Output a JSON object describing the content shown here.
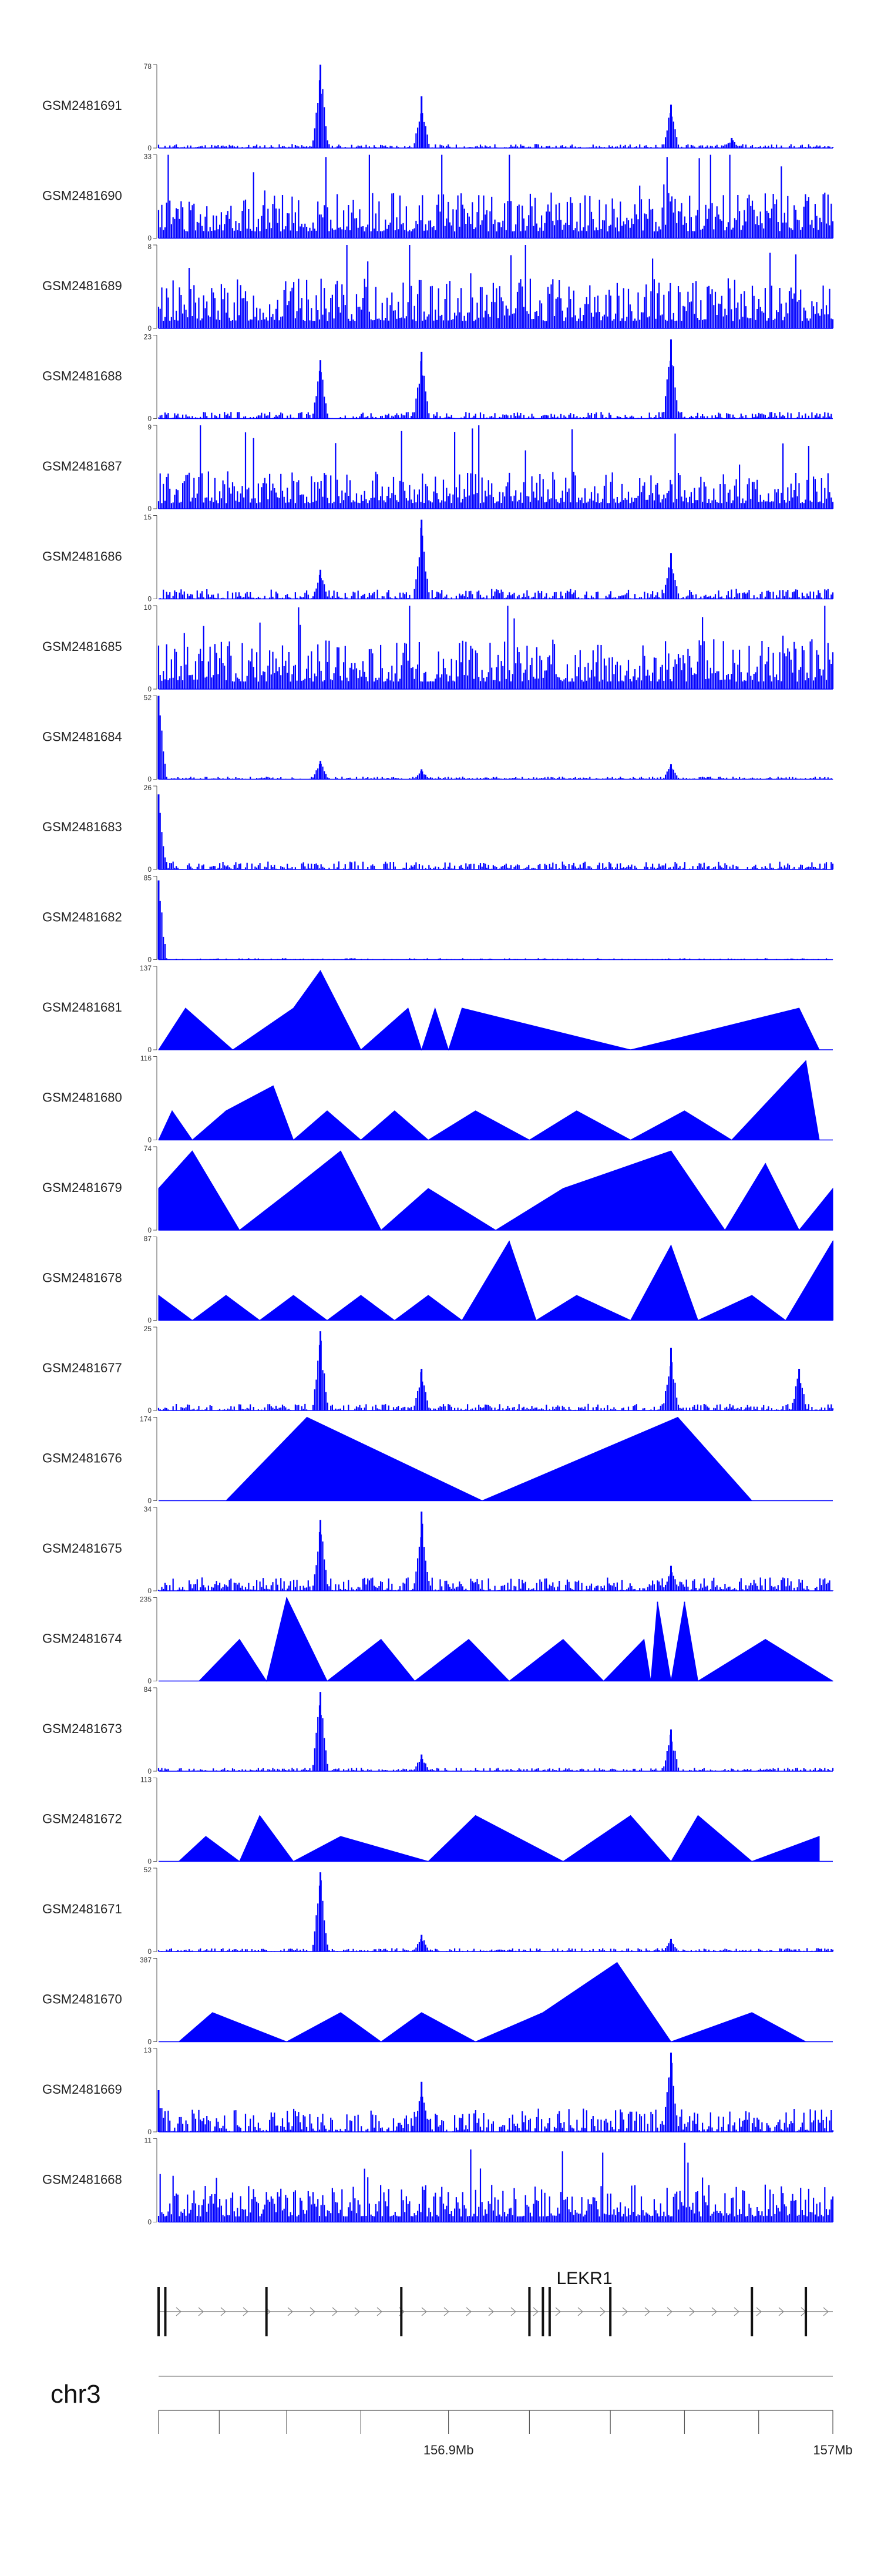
{
  "chart_data": {
    "type": "area",
    "color": "#0000ff",
    "tracks": [
      {
        "name": "GSM2481691",
        "ymax": "78",
        "ymin": "0",
        "style": "peaks",
        "peaks": [
          [
            0.24,
            1.0
          ],
          [
            0.39,
            0.62
          ],
          [
            0.76,
            0.52
          ],
          [
            0.85,
            0.12
          ]
        ],
        "noise": 0.06,
        "seed": 11
      },
      {
        "name": "GSM2481690",
        "ymax": "33",
        "ymin": "0",
        "style": "dense",
        "noise": 0.55,
        "seed": 12
      },
      {
        "name": "GSM2481689",
        "ymax": "8",
        "ymin": "0",
        "style": "dense",
        "noise": 0.6,
        "seed": 13
      },
      {
        "name": "GSM2481688",
        "ymax": "23",
        "ymin": "0",
        "style": "peaks",
        "peaks": [
          [
            0.24,
            0.7
          ],
          [
            0.39,
            0.8
          ],
          [
            0.76,
            0.95
          ]
        ],
        "noise": 0.1,
        "seed": 14
      },
      {
        "name": "GSM2481687",
        "ymax": "9",
        "ymin": "0",
        "style": "dense",
        "noise": 0.45,
        "seed": 15
      },
      {
        "name": "GSM2481686",
        "ymax": "15",
        "ymin": "0",
        "style": "peaks",
        "peaks": [
          [
            0.24,
            0.35
          ],
          [
            0.39,
            0.95
          ],
          [
            0.76,
            0.55
          ]
        ],
        "noise": 0.15,
        "seed": 16
      },
      {
        "name": "GSM2481685",
        "ymax": "10",
        "ymin": "0",
        "style": "dense",
        "noise": 0.6,
        "seed": 17
      },
      {
        "name": "GSM2481684",
        "ymax": "52",
        "ymin": "0",
        "style": "peaks",
        "peaks": [
          [
            0.0,
            1.0
          ],
          [
            0.24,
            0.22
          ],
          [
            0.39,
            0.12
          ],
          [
            0.76,
            0.18
          ]
        ],
        "noise": 0.04,
        "seed": 18
      },
      {
        "name": "GSM2481683",
        "ymax": "26",
        "ymin": "0",
        "style": "peaks",
        "peaks": [
          [
            0.0,
            0.9
          ]
        ],
        "noise": 0.12,
        "seed": 19
      },
      {
        "name": "GSM2481682",
        "ymax": "85",
        "ymin": "0",
        "style": "peaks",
        "peaks": [
          [
            0.0,
            0.95
          ]
        ],
        "noise": 0.02,
        "seed": 20
      },
      {
        "name": "GSM2481681",
        "ymax": "137",
        "ymin": "0",
        "style": "tri",
        "peaks": [
          [
            0.0,
            0.0
          ],
          [
            0.04,
            0.5
          ],
          [
            0.11,
            0.0
          ],
          [
            0.2,
            0.5
          ],
          [
            0.24,
            0.95
          ],
          [
            0.3,
            0.0
          ],
          [
            0.37,
            0.5
          ],
          [
            0.39,
            0.0
          ],
          [
            0.41,
            0.5
          ],
          [
            0.43,
            0.0
          ],
          [
            0.45,
            0.5
          ],
          [
            0.7,
            0.0
          ],
          [
            0.95,
            0.5
          ],
          [
            0.98,
            0.0
          ]
        ],
        "noise": 0.0,
        "seed": 21
      },
      {
        "name": "GSM2481680",
        "ymax": "116",
        "ymin": "0",
        "style": "tri",
        "peaks": [
          [
            0.0,
            0.0
          ],
          [
            0.02,
            0.35
          ],
          [
            0.05,
            0.0
          ],
          [
            0.1,
            0.35
          ],
          [
            0.17,
            0.65
          ],
          [
            0.2,
            0.0
          ],
          [
            0.25,
            0.35
          ],
          [
            0.3,
            0.0
          ],
          [
            0.35,
            0.35
          ],
          [
            0.4,
            0.0
          ],
          [
            0.47,
            0.35
          ],
          [
            0.55,
            0.0
          ],
          [
            0.62,
            0.35
          ],
          [
            0.7,
            0.0
          ],
          [
            0.78,
            0.35
          ],
          [
            0.85,
            0.0
          ],
          [
            0.96,
            0.95
          ],
          [
            0.98,
            0.0
          ]
        ],
        "noise": 0.0,
        "seed": 22
      },
      {
        "name": "GSM2481679",
        "ymax": "74",
        "ymin": "0",
        "style": "tri",
        "peaks": [
          [
            0.0,
            0.5
          ],
          [
            0.05,
            0.95
          ],
          [
            0.12,
            0.0
          ],
          [
            0.2,
            0.5
          ],
          [
            0.27,
            0.95
          ],
          [
            0.33,
            0.0
          ],
          [
            0.4,
            0.5
          ],
          [
            0.5,
            0.0
          ],
          [
            0.6,
            0.5
          ],
          [
            0.76,
            0.95
          ],
          [
            0.84,
            0.0
          ],
          [
            0.9,
            0.8
          ],
          [
            0.95,
            0.0
          ],
          [
            1.0,
            0.5
          ]
        ],
        "noise": 0.0,
        "seed": 23
      },
      {
        "name": "GSM2481678",
        "ymax": "87",
        "ymin": "0",
        "style": "tri",
        "peaks": [
          [
            0.0,
            0.3
          ],
          [
            0.05,
            0.0
          ],
          [
            0.1,
            0.3
          ],
          [
            0.15,
            0.0
          ],
          [
            0.2,
            0.3
          ],
          [
            0.25,
            0.0
          ],
          [
            0.3,
            0.3
          ],
          [
            0.35,
            0.0
          ],
          [
            0.4,
            0.3
          ],
          [
            0.45,
            0.0
          ],
          [
            0.52,
            0.95
          ],
          [
            0.56,
            0.0
          ],
          [
            0.62,
            0.3
          ],
          [
            0.7,
            0.0
          ],
          [
            0.76,
            0.9
          ],
          [
            0.8,
            0.0
          ],
          [
            0.88,
            0.3
          ],
          [
            0.93,
            0.0
          ],
          [
            1.0,
            0.95
          ]
        ],
        "noise": 0.0,
        "seed": 24
      },
      {
        "name": "GSM2481677",
        "ymax": "25",
        "ymin": "0",
        "style": "peaks",
        "peaks": [
          [
            0.24,
            0.95
          ],
          [
            0.39,
            0.5
          ],
          [
            0.76,
            0.75
          ],
          [
            0.95,
            0.5
          ]
        ],
        "noise": 0.1,
        "seed": 25
      },
      {
        "name": "GSM2481676",
        "ymax": "174",
        "ymin": "0",
        "style": "tri",
        "peaks": [
          [
            0.1,
            0.0
          ],
          [
            0.22,
            1.0
          ],
          [
            0.48,
            0.0
          ],
          [
            0.77,
            1.0
          ],
          [
            0.88,
            0.0
          ]
        ],
        "noise": 0.0,
        "seed": 26
      },
      {
        "name": "GSM2481675",
        "ymax": "34",
        "ymin": "0",
        "style": "peaks",
        "peaks": [
          [
            0.24,
            0.85
          ],
          [
            0.39,
            0.95
          ],
          [
            0.76,
            0.3
          ]
        ],
        "noise": 0.2,
        "seed": 27
      },
      {
        "name": "GSM2481674",
        "ymax": "235",
        "ymin": "0",
        "style": "tri",
        "peaks": [
          [
            0.06,
            0.0
          ],
          [
            0.12,
            0.5
          ],
          [
            0.16,
            0.0
          ],
          [
            0.19,
            1.0
          ],
          [
            0.25,
            0.0
          ],
          [
            0.33,
            0.5
          ],
          [
            0.38,
            0.0
          ],
          [
            0.46,
            0.5
          ],
          [
            0.52,
            0.0
          ],
          [
            0.6,
            0.5
          ],
          [
            0.66,
            0.0
          ],
          [
            0.72,
            0.5
          ],
          [
            0.73,
            0.0
          ],
          [
            0.74,
            0.95
          ],
          [
            0.76,
            0.0
          ],
          [
            0.78,
            0.95
          ],
          [
            0.8,
            0.0
          ],
          [
            0.9,
            0.5
          ],
          [
            1.0,
            0.0
          ]
        ],
        "noise": 0.0,
        "seed": 28
      },
      {
        "name": "GSM2481673",
        "ymax": "84",
        "ymin": "0",
        "style": "peaks",
        "peaks": [
          [
            0.24,
            0.95
          ],
          [
            0.39,
            0.2
          ],
          [
            0.76,
            0.5
          ]
        ],
        "noise": 0.05,
        "seed": 29
      },
      {
        "name": "GSM2481672",
        "ymax": "113",
        "ymin": "0",
        "style": "tri",
        "peaks": [
          [
            0.03,
            0.0
          ],
          [
            0.07,
            0.3
          ],
          [
            0.12,
            0.0
          ],
          [
            0.15,
            0.55
          ],
          [
            0.2,
            0.0
          ],
          [
            0.27,
            0.3
          ],
          [
            0.4,
            0.0
          ],
          [
            0.47,
            0.55
          ],
          [
            0.6,
            0.0
          ],
          [
            0.7,
            0.55
          ],
          [
            0.76,
            0.0
          ],
          [
            0.8,
            0.55
          ],
          [
            0.88,
            0.0
          ],
          [
            0.98,
            0.3
          ]
        ],
        "noise": 0.0,
        "seed": 30
      },
      {
        "name": "GSM2481671",
        "ymax": "52",
        "ymin": "0",
        "style": "peaks",
        "peaks": [
          [
            0.24,
            0.95
          ],
          [
            0.39,
            0.2
          ],
          [
            0.76,
            0.15
          ]
        ],
        "noise": 0.05,
        "seed": 31
      },
      {
        "name": "GSM2481670",
        "ymax": "387",
        "ymin": "0",
        "style": "tri",
        "peaks": [
          [
            0.03,
            0.0
          ],
          [
            0.08,
            0.35
          ],
          [
            0.19,
            0.0
          ],
          [
            0.27,
            0.35
          ],
          [
            0.33,
            0.0
          ],
          [
            0.39,
            0.35
          ],
          [
            0.47,
            0.0
          ],
          [
            0.57,
            0.35
          ],
          [
            0.68,
            0.95
          ],
          [
            0.76,
            0.0
          ],
          [
            0.88,
            0.35
          ],
          [
            0.96,
            0.0
          ]
        ],
        "noise": 0.0,
        "seed": 32
      },
      {
        "name": "GSM2481669",
        "ymax": "13",
        "ymin": "0",
        "style": "peaks",
        "peaks": [
          [
            0.0,
            0.5
          ],
          [
            0.39,
            0.6
          ],
          [
            0.76,
            0.95
          ]
        ],
        "noise": 0.35,
        "seed": 33
      },
      {
        "name": "GSM2481668",
        "ymax": "11",
        "ymin": "0",
        "style": "dense",
        "noise": 0.45,
        "seed": 34
      }
    ],
    "gene": {
      "name": "LEKR1",
      "exons": [
        0.0,
        0.01,
        0.16,
        0.36,
        0.55,
        0.57,
        0.58,
        0.67,
        0.88,
        0.96
      ]
    },
    "chromosome": "chr3",
    "axis": {
      "ticks": [
        0.0,
        0.09,
        0.19,
        0.3,
        0.43,
        0.55,
        0.67,
        0.78,
        0.89,
        1.0
      ],
      "labels": [
        {
          "pos": 0.43,
          "text": "156.9Mb"
        },
        {
          "pos": 1.0,
          "text": "157Mb"
        }
      ]
    }
  }
}
